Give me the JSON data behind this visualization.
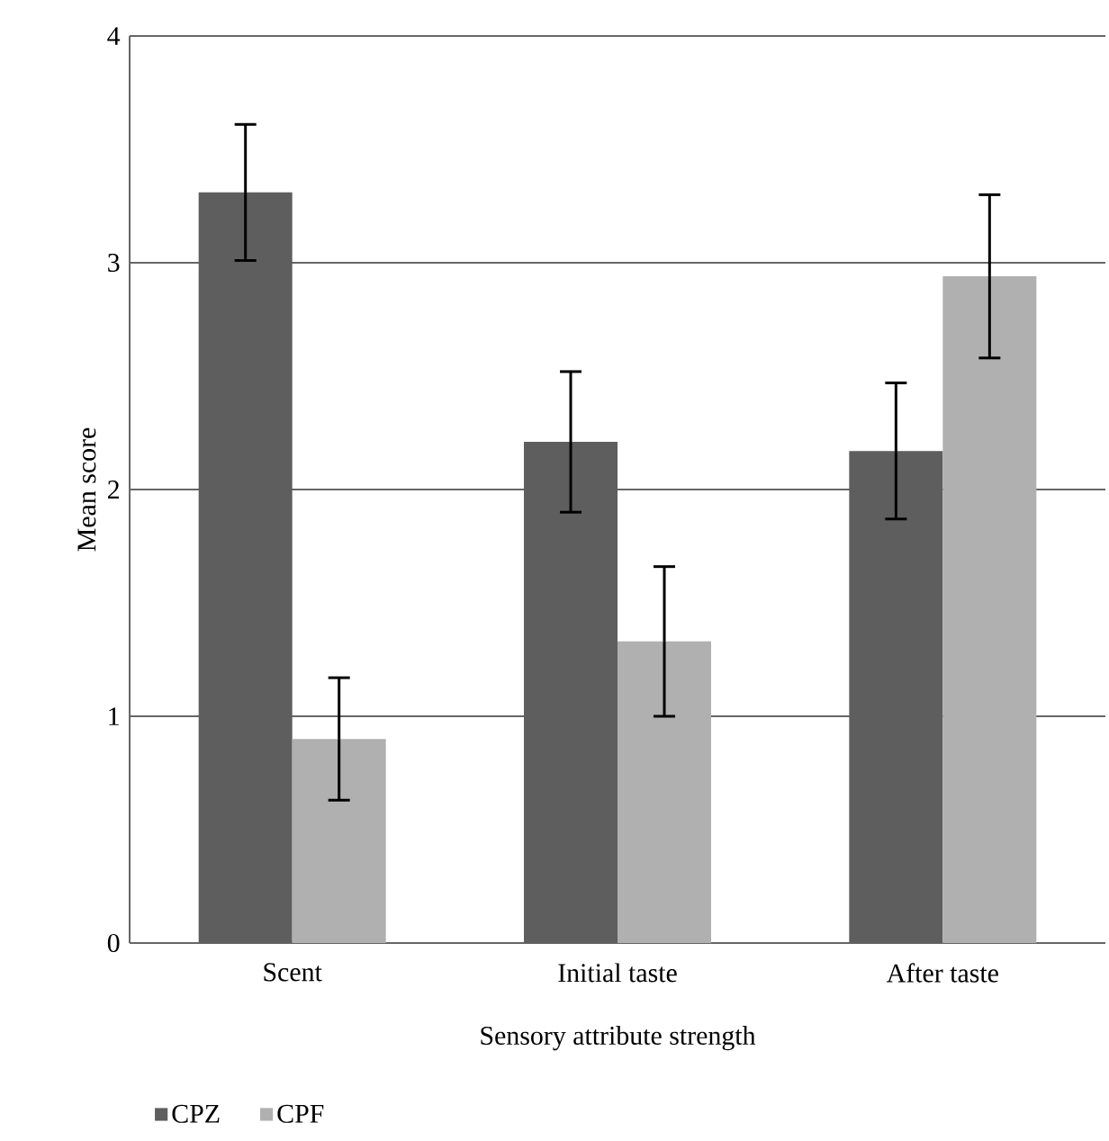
{
  "chart_data": {
    "type": "bar",
    "xlabel": "Sensory  attribute strength",
    "ylabel": "Mean score",
    "categories": [
      "Scent",
      "Initial taste",
      "After taste"
    ],
    "series": [
      {
        "name": "CPZ",
        "color": "#5e5e5e",
        "values": [
          3.31,
          2.21,
          2.17
        ],
        "errors": [
          0.3,
          0.31,
          0.3
        ]
      },
      {
        "name": "CPF",
        "color": "#b0b0b0",
        "values": [
          0.9,
          1.33,
          2.94
        ],
        "errors": [
          0.27,
          0.33,
          0.36
        ]
      }
    ],
    "ylim": [
      0,
      4
    ],
    "yticks": [
      0,
      1,
      2,
      3,
      4
    ],
    "grid": "y",
    "legend": "bottom left"
  }
}
